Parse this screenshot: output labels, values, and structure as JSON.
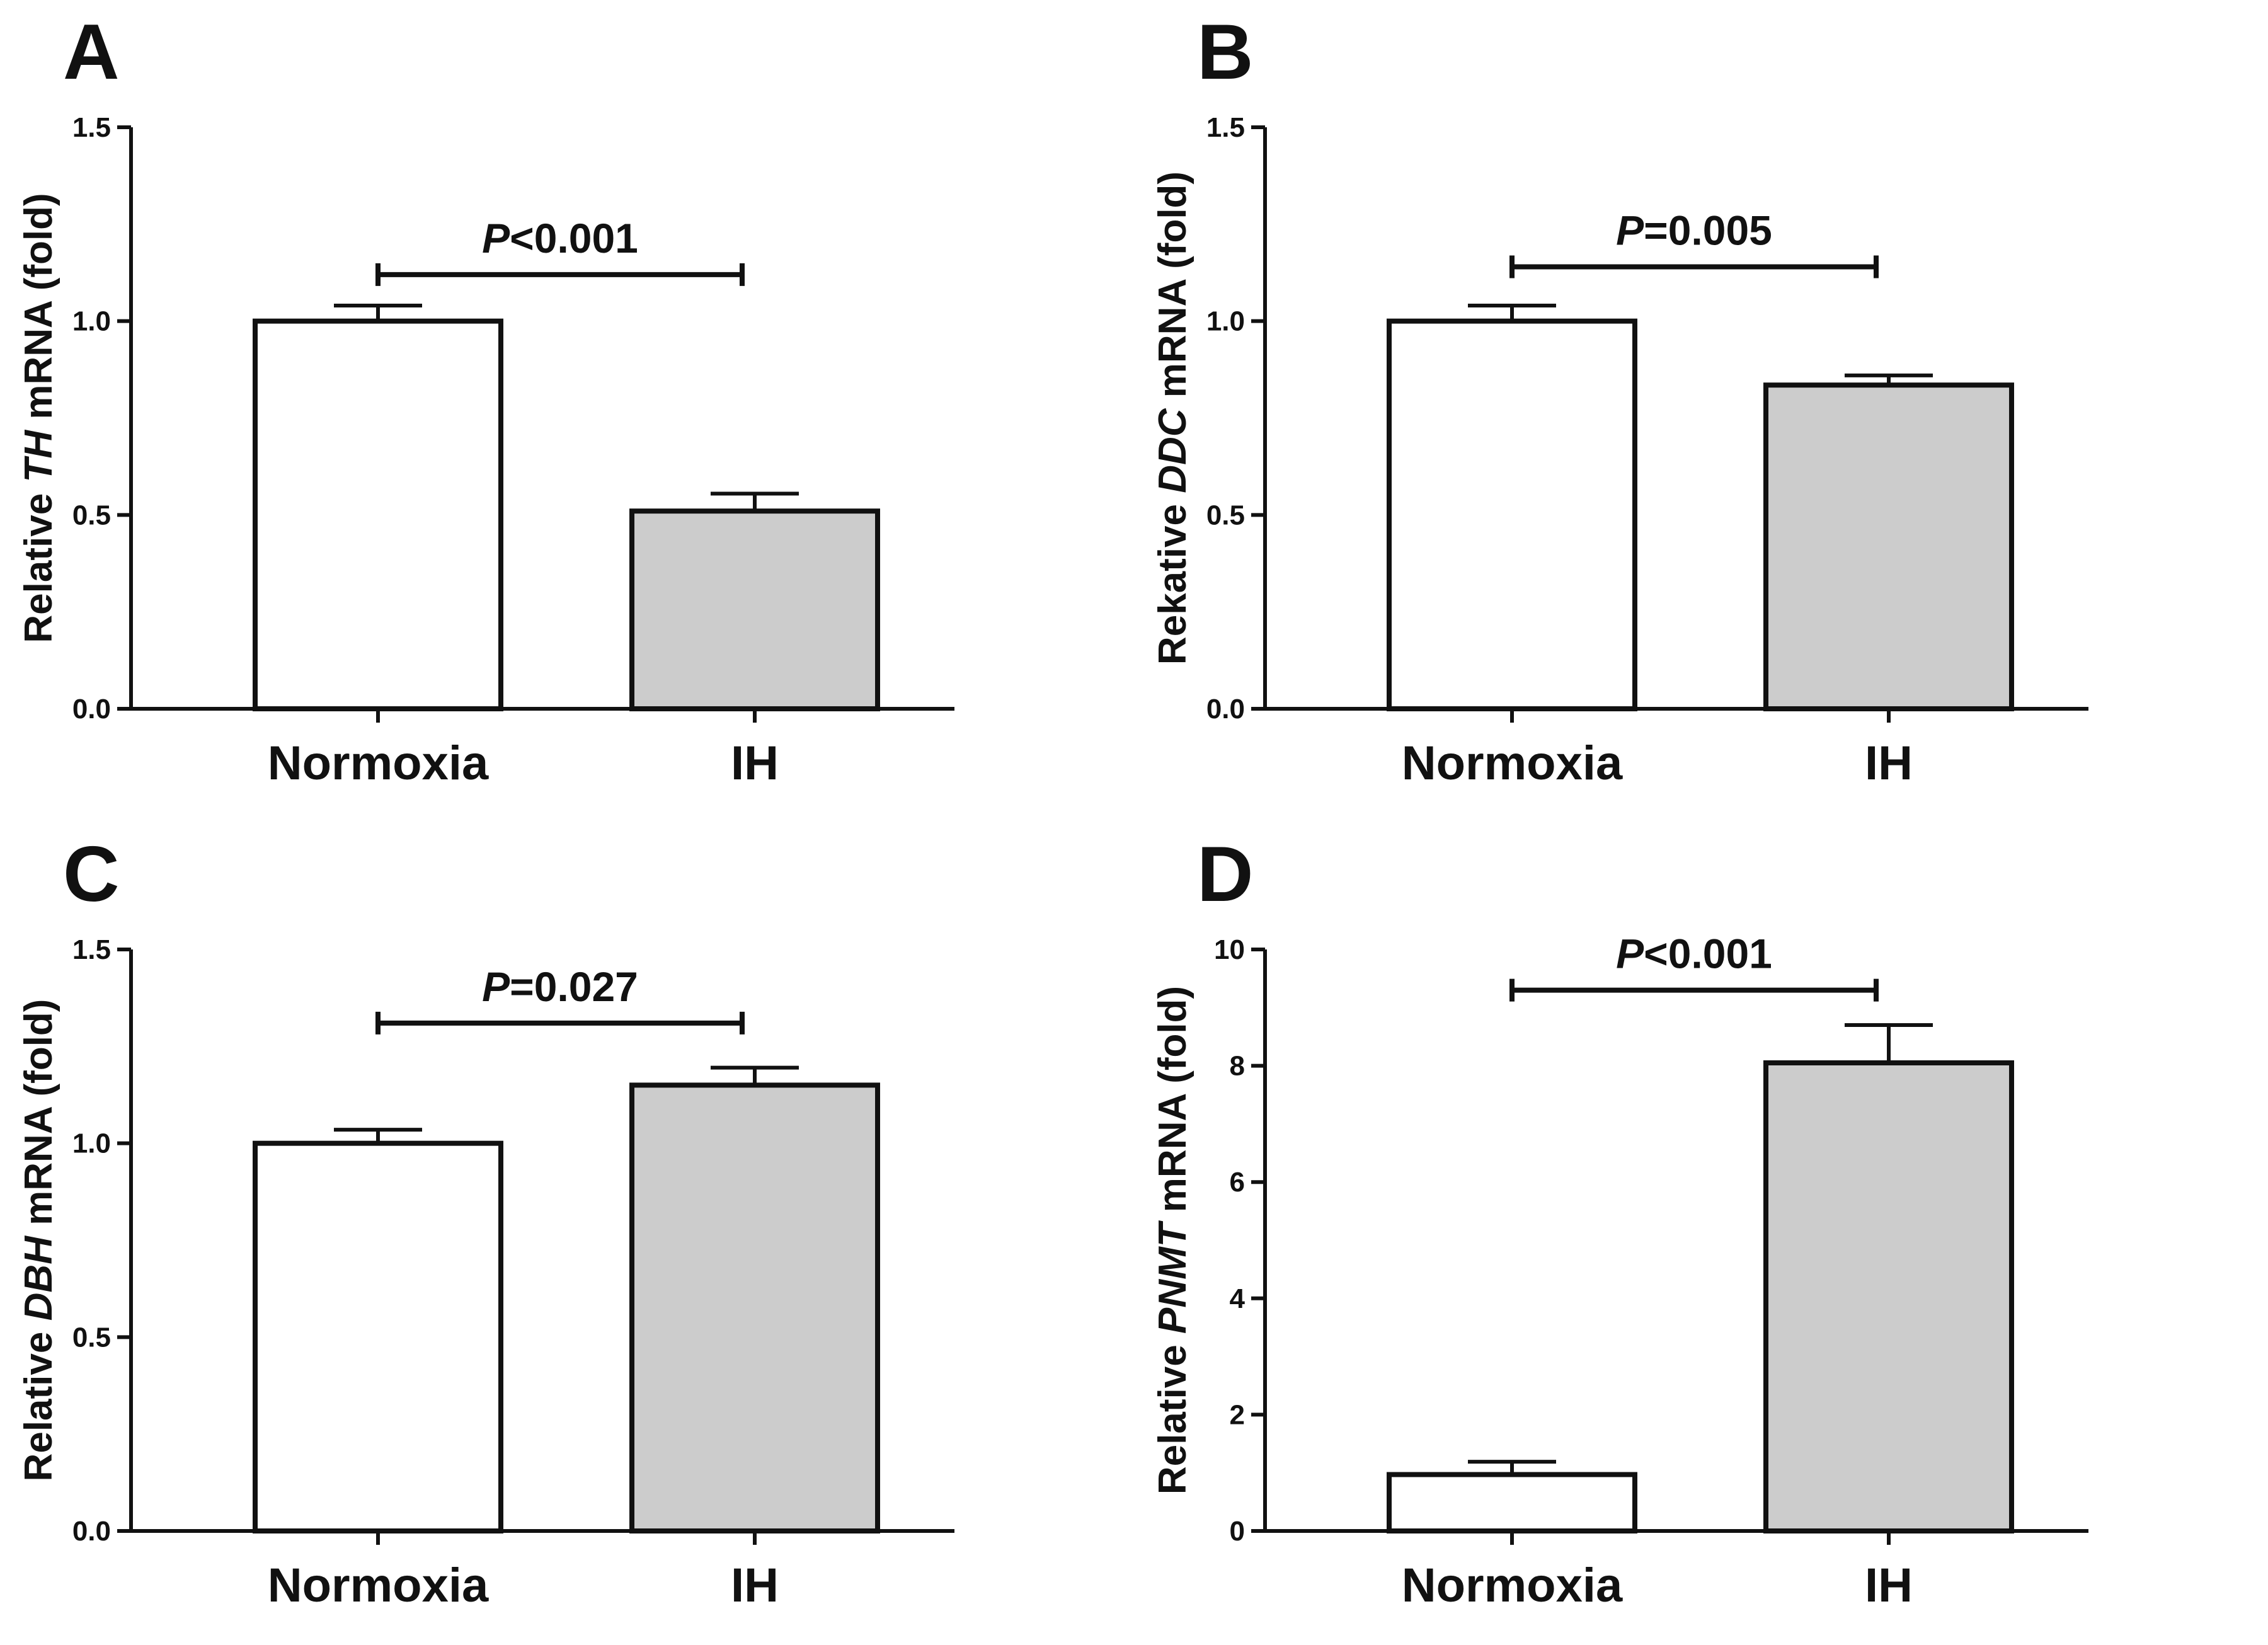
{
  "chart_data": [
    {
      "panel": "A",
      "type": "bar",
      "categories": [
        "Normoxia",
        "IH"
      ],
      "values": [
        1.0,
        0.51
      ],
      "errors": [
        0.04,
        0.045
      ],
      "colors": [
        "#ffffff",
        "#cccccc"
      ],
      "ylabel": {
        "prefix": "Relative ",
        "gene": "TH",
        "suffix": " mRNA (fold)"
      },
      "ylim": [
        0,
        1.5
      ],
      "yticks": [
        "0.0",
        "0.5",
        "1.0",
        "1.5"
      ],
      "yticks_values": [
        0,
        0.5,
        1.0,
        1.5
      ],
      "significance": {
        "label_p": "P",
        "label_rest": "<0.001",
        "y": 1.12
      }
    },
    {
      "panel": "B",
      "type": "bar",
      "categories": [
        "Normoxia",
        "IH"
      ],
      "values": [
        1.0,
        0.835
      ],
      "errors": [
        0.04,
        0.025
      ],
      "colors": [
        "#ffffff",
        "#cccccc"
      ],
      "ylabel": {
        "prefix": "Rekative ",
        "gene": "DDC",
        "suffix": " mRNA (fold)"
      },
      "ylim": [
        0,
        1.5
      ],
      "yticks": [
        "0.0",
        "0.5",
        "1.0",
        "1.5"
      ],
      "yticks_values": [
        0,
        0.5,
        1.0,
        1.5
      ],
      "significance": {
        "label_p": "P",
        "label_rest": "=0.005",
        "y": 1.14
      }
    },
    {
      "panel": "C",
      "type": "bar",
      "categories": [
        "Normoxia",
        "IH"
      ],
      "values": [
        1.0,
        1.15
      ],
      "errors": [
        0.035,
        0.045
      ],
      "colors": [
        "#ffffff",
        "#cccccc"
      ],
      "ylabel": {
        "prefix": "Relative ",
        "gene": "DBH",
        "suffix": " mRNA (fold)"
      },
      "ylim": [
        0,
        1.5
      ],
      "yticks": [
        "0.0",
        "0.5",
        "1.0",
        "1.5"
      ],
      "yticks_values": [
        0,
        0.5,
        1.0,
        1.5
      ],
      "significance": {
        "label_p": "P",
        "label_rest": "=0.027",
        "y": 1.31
      }
    },
    {
      "panel": "D",
      "type": "bar",
      "categories": [
        "Normoxia",
        "IH"
      ],
      "values": [
        0.97,
        8.05
      ],
      "errors": [
        0.22,
        0.65
      ],
      "colors": [
        "#ffffff",
        "#cccccc"
      ],
      "ylabel": {
        "prefix": "Relative ",
        "gene": "PNMT",
        "suffix": " mRNA (fold)"
      },
      "ylim": [
        0,
        10
      ],
      "yticks": [
        "0",
        "2",
        "4",
        "6",
        "8",
        "10"
      ],
      "yticks_values": [
        0,
        2,
        4,
        6,
        8,
        10
      ],
      "significance": {
        "label_p": "P",
        "label_rest": "<0.001",
        "y": 9.3
      }
    }
  ]
}
